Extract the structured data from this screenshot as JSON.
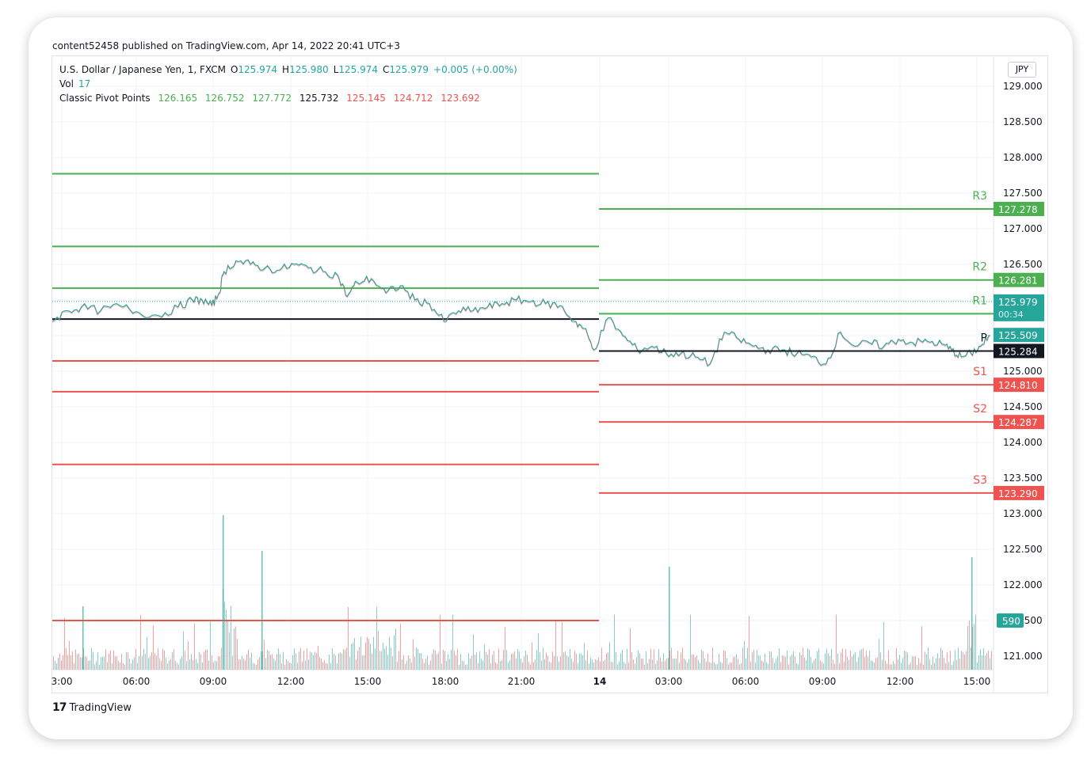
{
  "header": {
    "published": "content52458 published on TradingView.com, Apr 14, 2022 20:41 UTC+3"
  },
  "legend": {
    "symbol": "U.S. Dollar / Japanese Yen, 1, FXCM",
    "o_label": "O",
    "o_value": "125.974",
    "h_label": "H",
    "h_value": "125.980",
    "l_label": "L",
    "l_value": "125.974",
    "c_label": "C",
    "c_value": "125.979",
    "change": "+0.005 (+0.00%)",
    "vol_label": "Vol",
    "vol_value": "17",
    "pivot_label": "Classic Pivot Points",
    "pivot_values": [
      "126.165",
      "126.752",
      "127.772",
      "125.732",
      "125.145",
      "124.712",
      "123.692"
    ]
  },
  "currency": "JPY",
  "brand": {
    "name": "TradingView",
    "logo": "17"
  },
  "colors": {
    "up": "#26a69a",
    "down": "#ef5350",
    "resistance": "#4caf50",
    "support": "#ef5350",
    "pivot": "#131722"
  },
  "chart_data": {
    "type": "line",
    "y_axis": {
      "min": 120.7,
      "max": 129.1,
      "ticks": [
        "129.000",
        "128.500",
        "128.000",
        "127.500",
        "127.000",
        "126.500",
        "126.000",
        "125.500",
        "125.000",
        "124.500",
        "124.000",
        "123.500",
        "123.000",
        "122.500",
        "122.000",
        "121.500",
        "121.000"
      ]
    },
    "x_axis": {
      "ticks": [
        "3:00",
        "06:00",
        "09:00",
        "12:00",
        "15:00",
        "18:00",
        "21:00",
        "14",
        "03:00",
        "06:00",
        "09:00",
        "12:00",
        "15:00"
      ]
    },
    "pivots_day1": {
      "R1": 126.165,
      "R2": 126.752,
      "R3": 127.772,
      "P": 125.732,
      "S1": 125.145,
      "S2": 124.712,
      "S3": 123.692,
      "S3_lower": 121.5
    },
    "pivots_day2": [
      {
        "name": "R3",
        "value": "127.278"
      },
      {
        "name": "R2",
        "value": "126.281"
      },
      {
        "name": "R1",
        "value": "125.807"
      },
      {
        "name": "P",
        "value": "125.284"
      },
      {
        "name": "S1",
        "value": "124.810"
      },
      {
        "name": "S2",
        "value": "124.287"
      },
      {
        "name": "S3",
        "value": "123.290"
      }
    ],
    "last_price": {
      "value": "125.979",
      "countdown": "00:34"
    },
    "prev_close": {
      "value": "125.509"
    },
    "volume_label": "590",
    "price_series_approx": [
      [
        0,
        125.7
      ],
      [
        0.3,
        125.85
      ],
      [
        0.6,
        125.9
      ],
      [
        1.0,
        125.85
      ],
      [
        1.4,
        125.92
      ],
      [
        1.8,
        125.82
      ],
      [
        2.2,
        125.78
      ],
      [
        2.6,
        125.9
      ],
      [
        2.9,
        126.0
      ],
      [
        3.1,
        126.0
      ],
      [
        3.3,
        125.92
      ],
      [
        3.45,
        126.1
      ],
      [
        3.55,
        126.4
      ],
      [
        3.8,
        126.55
      ],
      [
        4.1,
        126.5
      ],
      [
        4.4,
        126.45
      ],
      [
        4.7,
        126.42
      ],
      [
        5.0,
        126.5
      ],
      [
        5.3,
        126.45
      ],
      [
        5.6,
        126.4
      ],
      [
        5.9,
        126.35
      ],
      [
        6.1,
        126.05
      ],
      [
        6.3,
        126.25
      ],
      [
        6.6,
        126.3
      ],
      [
        6.9,
        126.1
      ],
      [
        7.2,
        126.2
      ],
      [
        7.5,
        126.0
      ],
      [
        7.8,
        125.95
      ],
      [
        8.1,
        125.7
      ],
      [
        8.4,
        125.85
      ],
      [
        8.7,
        125.85
      ],
      [
        9.0,
        125.9
      ],
      [
        9.3,
        125.95
      ],
      [
        9.6,
        126.0
      ],
      [
        9.9,
        125.98
      ],
      [
        10.2,
        125.95
      ],
      [
        10.5,
        125.92
      ],
      [
        10.8,
        125.7
      ],
      [
        11.0,
        125.6
      ],
      [
        11.2,
        125.3
      ],
      [
        11.5,
        125.75
      ],
      [
        11.8,
        125.5
      ],
      [
        12.1,
        125.3
      ],
      [
        12.4,
        125.35
      ],
      [
        12.7,
        125.25
      ],
      [
        13.0,
        125.25
      ],
      [
        13.3,
        125.2
      ],
      [
        13.6,
        125.1
      ],
      [
        13.9,
        125.55
      ],
      [
        14.2,
        125.45
      ],
      [
        14.5,
        125.35
      ],
      [
        14.8,
        125.3
      ],
      [
        15.1,
        125.3
      ],
      [
        15.4,
        125.25
      ],
      [
        15.7,
        125.2
      ],
      [
        16.0,
        125.1
      ],
      [
        16.3,
        125.55
      ],
      [
        16.6,
        125.35
      ],
      [
        16.9,
        125.4
      ],
      [
        17.2,
        125.35
      ],
      [
        17.5,
        125.45
      ],
      [
        17.8,
        125.4
      ],
      [
        18.1,
        125.42
      ],
      [
        18.4,
        125.38
      ],
      [
        18.6,
        125.3
      ],
      [
        18.8,
        125.2
      ],
      [
        19.0,
        125.25
      ],
      [
        19.2,
        125.35
      ],
      [
        19.4,
        125.5
      ]
    ]
  },
  "volume_series_note": "volume bars along bottom"
}
